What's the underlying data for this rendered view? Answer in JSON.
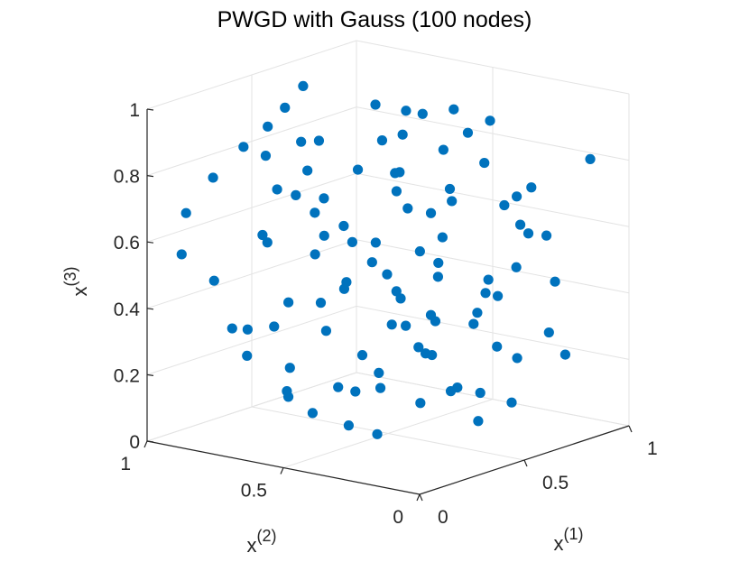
{
  "chart_data": {
    "type": "scatter",
    "title": "PWGD with Gauss (100 nodes)",
    "xlabel": "x",
    "xlabel_sup": "(1)",
    "ylabel": "x",
    "ylabel_sup": "(2)",
    "zlabel": "x",
    "zlabel_sup": "(3)",
    "xlim": [
      0,
      1
    ],
    "ylim": [
      0,
      1
    ],
    "zlim": [
      0,
      1
    ],
    "x_ticks": [
      "0",
      "0.5",
      "1"
    ],
    "y_ticks": [
      "0",
      "0.5",
      "1"
    ],
    "z_ticks": [
      "0",
      "0.2",
      "0.4",
      "0.6",
      "0.8",
      "1"
    ],
    "grid": true,
    "marker_color": "#0072BD",
    "points": [
      [
        0.25,
        0.95,
        0.75
      ],
      [
        0.28,
        0.65,
        0.9
      ],
      [
        0.75,
        0.72,
        0.05
      ],
      [
        0.6,
        0.45,
        0.95
      ],
      [
        0.15,
        0.2,
        0.85
      ],
      [
        0.7,
        0.2,
        0.1
      ],
      [
        0.55,
        0.85,
        0.98
      ],
      [
        0.82,
        0.22,
        0.72
      ],
      [
        0.4,
        0.7,
        0.05
      ],
      [
        0.62,
        0.12,
        0.75
      ],
      [
        0.18,
        0.55,
        0.85
      ],
      [
        0.9,
        0.65,
        0.25
      ],
      [
        0.35,
        0.9,
        0.28
      ],
      [
        0.48,
        0.3,
        0.55
      ],
      [
        0.05,
        0.52,
        0.2
      ],
      [
        0.77,
        0.55,
        0.6
      ],
      [
        0.22,
        0.33,
        0.66
      ],
      [
        0.66,
        0.85,
        0.22
      ],
      [
        0.44,
        0.14,
        0.4
      ],
      [
        0.12,
        0.78,
        0.35
      ],
      [
        0.58,
        0.62,
        0.48
      ],
      [
        0.31,
        0.12,
        0.8
      ],
      [
        0.87,
        0.41,
        0.88
      ],
      [
        0.49,
        0.76,
        0.5
      ],
      [
        0.93,
        0.18,
        0.2
      ],
      [
        0.08,
        0.33,
        0.57
      ],
      [
        0.37,
        0.52,
        0.15
      ],
      [
        0.71,
        0.08,
        0.62
      ],
      [
        0.26,
        0.41,
        0.3
      ],
      [
        0.64,
        0.28,
        0.37
      ],
      [
        0.53,
        0.93,
        0.66
      ],
      [
        0.16,
        0.61,
        0.18
      ],
      [
        0.81,
        0.37,
        0.42
      ],
      [
        0.4,
        0.22,
        0.92
      ],
      [
        0.09,
        0.12,
        0.47
      ],
      [
        0.68,
        0.66,
        0.82
      ],
      [
        0.33,
        0.83,
        0.58
      ],
      [
        0.57,
        0.08,
        0.28
      ],
      [
        0.96,
        0.5,
        0.72
      ],
      [
        0.21,
        0.72,
        0.6
      ],
      [
        0.46,
        0.58,
        0.79
      ],
      [
        0.74,
        0.43,
        0.1
      ],
      [
        0.13,
        0.45,
        0.68
      ],
      [
        0.86,
        0.78,
        0.36
      ],
      [
        0.29,
        0.22,
        0.18
      ],
      [
        0.51,
        0.37,
        0.26
      ],
      [
        0.03,
        0.88,
        0.7
      ],
      [
        0.62,
        0.52,
        0.65
      ],
      [
        0.38,
        0.05,
        0.52
      ],
      [
        0.91,
        0.3,
        0.55
      ],
      [
        0.19,
        0.9,
        0.46
      ],
      [
        0.55,
        0.2,
        0.16
      ],
      [
        0.77,
        0.87,
        0.51
      ],
      [
        0.44,
        0.44,
        0.35
      ],
      [
        0.07,
        0.7,
        0.92
      ],
      [
        0.66,
        0.33,
        0.9
      ],
      [
        0.24,
        0.07,
        0.25
      ],
      [
        0.84,
        0.6,
        0.15
      ],
      [
        0.35,
        0.62,
        0.72
      ],
      [
        0.59,
        0.73,
        0.38
      ],
      [
        0.11,
        0.24,
        0.12
      ],
      [
        0.79,
        0.11,
        0.46
      ],
      [
        0.42,
        0.88,
        0.88
      ],
      [
        0.7,
        0.48,
        0.3
      ],
      [
        0.17,
        0.5,
        0.95
      ],
      [
        0.52,
        0.03,
        0.7
      ],
      [
        0.95,
        0.82,
        0.64
      ],
      [
        0.3,
        0.3,
        0.48
      ],
      [
        0.61,
        0.95,
        0.3
      ],
      [
        0.06,
        0.58,
        0.4
      ],
      [
        0.88,
        0.05,
        0.82
      ],
      [
        0.47,
        0.66,
        0.12
      ],
      [
        0.23,
        0.81,
        0.24
      ],
      [
        0.73,
        0.25,
        0.68
      ],
      [
        0.36,
        0.35,
        0.84
      ],
      [
        0.57,
        0.6,
        0.96
      ],
      [
        0.14,
        0.04,
        0.62
      ],
      [
        0.83,
        0.7,
        0.8
      ],
      [
        0.43,
        0.48,
        0.2
      ],
      [
        0.67,
        0.16,
        0.52
      ],
      [
        0.27,
        0.57,
        0.43
      ],
      [
        0.92,
        0.42,
        0.34
      ],
      [
        0.5,
        0.86,
        0.14
      ],
      [
        0.02,
        0.4,
        0.78
      ],
      [
        0.76,
        0.3,
        0.24
      ],
      [
        0.32,
        0.74,
        0.98
      ],
      [
        0.63,
        0.4,
        0.58
      ],
      [
        0.19,
        0.15,
        0.38
      ],
      [
        0.85,
        0.9,
        0.44
      ],
      [
        0.41,
        0.1,
        0.12
      ],
      [
        0.54,
        0.5,
        0.42
      ],
      [
        0.1,
        0.95,
        0.55
      ],
      [
        0.69,
        0.58,
        0.92
      ],
      [
        0.34,
        0.26,
        0.62
      ],
      [
        0.8,
        0.14,
        0.3
      ],
      [
        0.45,
        0.8,
        0.68
      ],
      [
        0.97,
        0.62,
        0.86
      ],
      [
        0.26,
        0.46,
        0.08
      ],
      [
        0.6,
        0.35,
        0.74
      ],
      [
        0.15,
        0.68,
        0.88
      ]
    ]
  }
}
